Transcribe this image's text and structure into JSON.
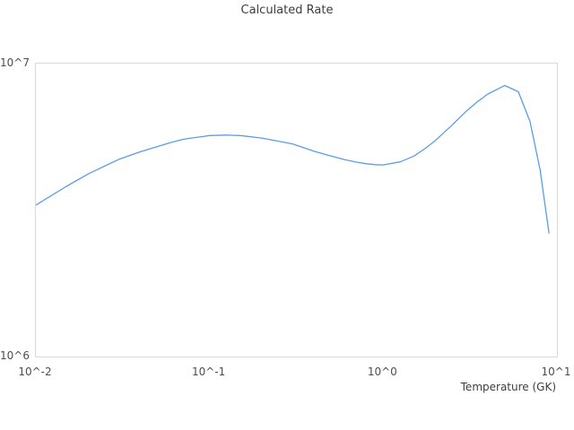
{
  "figure": {
    "background": "#ffffff",
    "border_color": "#d9d9d9",
    "title_color": "#3d3d3d",
    "tick_color": "#4d4d4d"
  },
  "chart_data": {
    "type": "line",
    "title": "Calculated Rate",
    "xlabel": "Temperature (GK)",
    "ylabel": "",
    "x_scale": "log",
    "y_scale": "log",
    "xlim": [
      0.01,
      10
    ],
    "ylim": [
      1000000,
      10000000
    ],
    "grid": false,
    "legend_position": "none",
    "line_color": "#5b9ce8",
    "x_ticks": {
      "values": [
        0.01,
        0.1,
        1,
        10
      ],
      "labels": [
        "10^-2",
        "10^-1",
        "10^0",
        "10^1"
      ]
    },
    "y_ticks": {
      "values": [
        1000000,
        10000000
      ],
      "labels": [
        "10^6",
        "10^7"
      ]
    },
    "series": [
      {
        "name": "Calculated Rate",
        "x": [
          0.01,
          0.015,
          0.02,
          0.03,
          0.04,
          0.05,
          0.06,
          0.07,
          0.08,
          0.09,
          0.1,
          0.125,
          0.15,
          0.2,
          0.3,
          0.4,
          0.5,
          0.6,
          0.7,
          0.8,
          0.9,
          1.0,
          1.25,
          1.5,
          1.75,
          2.0,
          2.5,
          3.0,
          3.5,
          4.0,
          5.0,
          6.0,
          7.0,
          8.0,
          9.0
        ],
        "y": [
          3290000.0,
          3810000.0,
          4200000.0,
          4710000.0,
          5000000.0,
          5210000.0,
          5380000.0,
          5510000.0,
          5580000.0,
          5630000.0,
          5680000.0,
          5700000.0,
          5680000.0,
          5570000.0,
          5320000.0,
          5020000.0,
          4840000.0,
          4700000.0,
          4610000.0,
          4550000.0,
          4520000.0,
          4510000.0,
          4620000.0,
          4830000.0,
          5140000.0,
          5470000.0,
          6180000.0,
          6870000.0,
          7430000.0,
          7870000.0,
          8420000.0,
          8010000.0,
          6330000.0,
          4340000.0,
          2640000.0
        ]
      }
    ]
  }
}
